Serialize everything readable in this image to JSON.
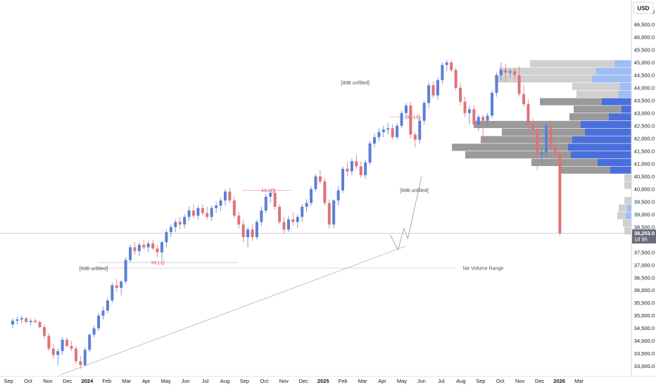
{
  "chart_data": {
    "type": "candlestick",
    "currency_label": "USD",
    "colors": {
      "up": "#5b7fd6",
      "down": "#e07277",
      "price_tag": "#6b6e7a",
      "vp_blue_strong": "#4a6fdc",
      "vp_blue_light": "#9ebdf5",
      "vp_gray_strong": "#9a9a9a",
      "vp_gray_light": "#d0d0d0",
      "annotation_red": "#e5484d",
      "annotation_gray": "#50535e"
    },
    "y_axis": {
      "min": 32600,
      "max": 47300,
      "ticks": [
        "33,000.0",
        "33,500.0",
        "34,000.0",
        "34,500.0",
        "35,000.0",
        "35,500.0",
        "36,000.0",
        "36,500.0",
        "37,000.0",
        "37,500.0",
        "38,000.0",
        "38,500.0",
        "39,000.0",
        "39,500.0",
        "40,000.0",
        "40,500.0",
        "41,000.0",
        "41,500.0",
        "42,000.0",
        "42,500.0",
        "43,000.0",
        "43,500.0",
        "44,000.0",
        "44,500.0",
        "45,000.0",
        "45,500.0",
        "46,000.0",
        "46,500.0",
        "47,000.0"
      ]
    },
    "x_axis": {
      "tick_labels": [
        "Sep",
        "Oct",
        "Nov",
        "Dec",
        "2024",
        "Feb",
        "Mar",
        "Apr",
        "May",
        "Jun",
        "Jul",
        "Aug",
        "Sep",
        "Oct",
        "Nov",
        "Dec",
        "2025",
        "Feb",
        "Mar",
        "Apr",
        "May",
        "Jun",
        "Jul",
        "Aug",
        "Sep",
        "Oct",
        "Nov",
        "Dec",
        "2026",
        "Mar"
      ],
      "bold_labels": [
        "2024",
        "2025",
        "2026"
      ]
    },
    "price_label": {
      "value": 38253,
      "text": "38,253.0",
      "countdown": "1d 9h"
    },
    "candles_start_month": 0.5,
    "candles_per_month": 4.35,
    "candles": [
      [
        34650,
        34900,
        34500,
        34800
      ],
      [
        34800,
        34950,
        34650,
        34850
      ],
      [
        34850,
        35000,
        34700,
        34900
      ],
      [
        34900,
        34950,
        34700,
        34750
      ],
      [
        34750,
        34900,
        34600,
        34800
      ],
      [
        34800,
        34900,
        34700,
        34750
      ],
      [
        34750,
        34800,
        34500,
        34550
      ],
      [
        34550,
        34650,
        34100,
        34200
      ],
      [
        34200,
        34300,
        33600,
        33700
      ],
      [
        33700,
        33900,
        33300,
        33450
      ],
      [
        33450,
        33700,
        33050,
        33600
      ],
      [
        33600,
        34150,
        33450,
        34050
      ],
      [
        34050,
        34150,
        33750,
        33800
      ],
      [
        33800,
        34000,
        33600,
        33700
      ],
      [
        33700,
        33800,
        33100,
        33200
      ],
      [
        33200,
        33400,
        32900,
        33050
      ],
      [
        33050,
        33750,
        33000,
        33650
      ],
      [
        33650,
        34300,
        33550,
        34250
      ],
      [
        34250,
        34600,
        34150,
        34500
      ],
      [
        34500,
        35100,
        34400,
        35000
      ],
      [
        35000,
        35350,
        34850,
        35200
      ],
      [
        35200,
        35700,
        35100,
        35600
      ],
      [
        35600,
        36300,
        35500,
        36200
      ],
      [
        36200,
        36450,
        35950,
        36100
      ],
      [
        36100,
        36400,
        35800,
        36350
      ],
      [
        36350,
        37300,
        36250,
        37200
      ],
      [
        37200,
        37800,
        37100,
        37700
      ],
      [
        37700,
        37900,
        37400,
        37550
      ],
      [
        37550,
        37900,
        37350,
        37800
      ],
      [
        37800,
        38000,
        37600,
        37700
      ],
      [
        37700,
        37950,
        37500,
        37850
      ],
      [
        37850,
        38000,
        37600,
        37650
      ],
      [
        37650,
        37800,
        37300,
        37500
      ],
      [
        37500,
        37950,
        37200,
        37900
      ],
      [
        37900,
        38400,
        37700,
        38300
      ],
      [
        38300,
        38600,
        38100,
        38500
      ],
      [
        38500,
        38800,
        38300,
        38700
      ],
      [
        38700,
        38900,
        38400,
        38600
      ],
      [
        38600,
        39000,
        38450,
        38900
      ],
      [
        38900,
        39300,
        38750,
        39150
      ],
      [
        39150,
        39400,
        38850,
        38950
      ],
      [
        38950,
        39350,
        38800,
        39250
      ],
      [
        39250,
        39400,
        38950,
        39050
      ],
      [
        39050,
        39300,
        38800,
        38900
      ],
      [
        38900,
        39350,
        38750,
        39250
      ],
      [
        39250,
        39500,
        39050,
        39350
      ],
      [
        39350,
        39650,
        39150,
        39550
      ],
      [
        39550,
        40000,
        39350,
        39900
      ],
      [
        39900,
        40050,
        39450,
        39550
      ],
      [
        39550,
        39700,
        38850,
        38950
      ],
      [
        38950,
        39100,
        38450,
        38600
      ],
      [
        38600,
        38800,
        37900,
        38100
      ],
      [
        38100,
        38500,
        37700,
        38400
      ],
      [
        38400,
        38600,
        37950,
        38100
      ],
      [
        38100,
        38800,
        38000,
        38700
      ],
      [
        38700,
        39300,
        38550,
        39150
      ],
      [
        39150,
        39800,
        39050,
        39700
      ],
      [
        39700,
        40000,
        39450,
        39850
      ],
      [
        39850,
        40000,
        39200,
        39300
      ],
      [
        39300,
        39400,
        38600,
        38700
      ],
      [
        38700,
        38900,
        38250,
        38400
      ],
      [
        38400,
        38950,
        38300,
        38800
      ],
      [
        38800,
        39100,
        38550,
        38700
      ],
      [
        38700,
        39000,
        38450,
        38900
      ],
      [
        38900,
        39400,
        38700,
        39300
      ],
      [
        39300,
        39600,
        39100,
        39450
      ],
      [
        39450,
        40100,
        39350,
        40000
      ],
      [
        40000,
        40600,
        39900,
        40500
      ],
      [
        40500,
        40750,
        40200,
        40300
      ],
      [
        40300,
        40450,
        39350,
        39450
      ],
      [
        39450,
        39600,
        38450,
        38600
      ],
      [
        38600,
        39600,
        38450,
        39550
      ],
      [
        39550,
        40100,
        39350,
        39950
      ],
      [
        39950,
        40900,
        39850,
        40800
      ],
      [
        40800,
        41050,
        40500,
        40700
      ],
      [
        40700,
        41200,
        40550,
        41100
      ],
      [
        41100,
        41350,
        40800,
        40900
      ],
      [
        40900,
        41100,
        40450,
        40550
      ],
      [
        40550,
        41150,
        40400,
        41050
      ],
      [
        41050,
        41900,
        40950,
        41800
      ],
      [
        41800,
        42200,
        41650,
        42050
      ],
      [
        42050,
        42400,
        41900,
        42250
      ],
      [
        42250,
        42500,
        42050,
        42350
      ],
      [
        42350,
        42600,
        42150,
        42400
      ],
      [
        42400,
        42550,
        41950,
        42050
      ],
      [
        42050,
        42600,
        41950,
        42500
      ],
      [
        42500,
        43100,
        42400,
        43000
      ],
      [
        43000,
        43400,
        42750,
        43300
      ],
      [
        43300,
        43450,
        42000,
        42150
      ],
      [
        42150,
        42250,
        41650,
        41950
      ],
      [
        41950,
        42800,
        41800,
        42700
      ],
      [
        42700,
        43500,
        42550,
        43400
      ],
      [
        43400,
        44200,
        43200,
        44100
      ],
      [
        44100,
        44250,
        43600,
        43700
      ],
      [
        43700,
        44400,
        43550,
        44300
      ],
      [
        44300,
        45000,
        44150,
        44900
      ],
      [
        44900,
        45100,
        44650,
        45000
      ],
      [
        45000,
        45100,
        44600,
        44700
      ],
      [
        44700,
        44800,
        43900,
        44000
      ],
      [
        44000,
        44200,
        43300,
        43450
      ],
      [
        43450,
        43650,
        42850,
        43000
      ],
      [
        43000,
        43300,
        42550,
        43150
      ],
      [
        43150,
        43300,
        42450,
        42550
      ],
      [
        42550,
        42950,
        42300,
        42850
      ],
      [
        42850,
        42950,
        41900,
        42700
      ],
      [
        42700,
        43000,
        42500,
        42900
      ],
      [
        42900,
        43900,
        42800,
        43800
      ],
      [
        43800,
        44600,
        43650,
        44500
      ],
      [
        44500,
        45000,
        44300,
        44700
      ],
      [
        44700,
        44950,
        44250,
        44600
      ],
      [
        44600,
        44750,
        44400,
        44650
      ],
      [
        44650,
        44800,
        44350,
        44500
      ],
      [
        44500,
        44850,
        43650,
        43750
      ],
      [
        43750,
        44100,
        43250,
        43350
      ],
      [
        43350,
        43550,
        42350,
        42550
      ],
      [
        42550,
        42800,
        41750,
        42350
      ],
      [
        42350,
        42600,
        40750,
        41350
      ],
      [
        41350,
        41650,
        41050,
        41450
      ],
      [
        41450,
        42600,
        41250,
        42500
      ],
      [
        42500,
        42700,
        41500,
        41650
      ],
      [
        41650,
        41900,
        41200,
        41400
      ],
      [
        41400,
        41550,
        38150,
        38253
      ]
    ],
    "volume_profile": [
      {
        "price": 44950,
        "gray": 120,
        "blue": 24,
        "blue_tone": "light"
      },
      {
        "price": 44650,
        "gray": 138,
        "blue": 50,
        "blue_tone": "light"
      },
      {
        "price": 44350,
        "gray": 138,
        "blue": 56,
        "blue_tone": "light"
      },
      {
        "price": 44050,
        "gray": 68,
        "blue": 16,
        "blue_tone": "light"
      },
      {
        "price": 43750,
        "gray": 60,
        "blue": 18,
        "blue_tone": "light"
      },
      {
        "price": 43450,
        "gray": 88,
        "blue": 42,
        "blue_tone": "strong"
      },
      {
        "price": 43150,
        "gray": 68,
        "blue": 14,
        "blue_tone": "strong"
      },
      {
        "price": 42850,
        "gray": 56,
        "blue": 32,
        "blue_tone": "strong"
      },
      {
        "price": 42550,
        "gray": 152,
        "blue": 72,
        "blue_tone": "strong"
      },
      {
        "price": 42250,
        "gray": 118,
        "blue": 66,
        "blue_tone": "strong"
      },
      {
        "price": 41950,
        "gray": 130,
        "blue": 84,
        "blue_tone": "strong"
      },
      {
        "price": 41650,
        "gray": 165,
        "blue": 90,
        "blue_tone": "strong"
      },
      {
        "price": 41350,
        "gray": 150,
        "blue": 86,
        "blue_tone": "strong"
      },
      {
        "price": 41050,
        "gray": 94,
        "blue": 48,
        "blue_tone": "strong"
      },
      {
        "price": 40750,
        "gray": 70,
        "blue": 30,
        "blue_tone": "strong"
      },
      {
        "price": 40450,
        "gray": 10,
        "blue": 0,
        "blue_tone": "light"
      },
      {
        "price": 40150,
        "gray": 10,
        "blue": 0,
        "blue_tone": "light"
      },
      {
        "price": 39550,
        "gray": 10,
        "blue": 0,
        "blue_tone": "light"
      },
      {
        "price": 39250,
        "gray": 12,
        "blue": 6,
        "blue_tone": "light"
      },
      {
        "price": 38950,
        "gray": 12,
        "blue": 8,
        "blue_tone": "light"
      },
      {
        "price": 38650,
        "gray": 12,
        "blue": 0,
        "blue_tone": "light"
      },
      {
        "price": 38350,
        "gray": 10,
        "blue": 0,
        "blue_tone": "light"
      }
    ],
    "annotations": [
      {
        "type": "hline",
        "color": "red",
        "x1_month": 19.4,
        "x2_month": 21.2,
        "y": 42850,
        "label": "int.LQ",
        "label_month": 20.6
      },
      {
        "type": "hline",
        "color": "red",
        "x1_month": 11.9,
        "x2_month": 14.4,
        "y": 39950,
        "label": "int.LQ",
        "label_month": 13.2
      },
      {
        "type": "hline",
        "color": "gray",
        "x1_month": 4.6,
        "x2_month": 11.7,
        "y": 37100,
        "label": "int.LQ",
        "label_month": 7.6,
        "label_color": "red"
      },
      {
        "type": "hline",
        "color": "gray",
        "x1_month": 3.6,
        "x2_month": 22.7,
        "y": 36880,
        "label": "fair Volume Range",
        "label_month": 23.1,
        "label_color": "gray",
        "label_side": "right"
      },
      {
        "type": "text",
        "month": 16.9,
        "y": 44200,
        "label": "[IMB unfilled]"
      },
      {
        "type": "text",
        "month": 19.9,
        "y": 39950,
        "label": "[IMB unfilled]"
      },
      {
        "type": "text",
        "month": 3.6,
        "y": 36860,
        "label": "[IMB unfilled]"
      },
      {
        "type": "trendline",
        "x1_month": 2.6,
        "y1": 32650,
        "x2_month": 20.2,
        "y2": 37750
      },
      {
        "type": "path",
        "points": [
          [
            19.4,
            38200
          ],
          [
            19.8,
            37600
          ],
          [
            20.1,
            38450
          ],
          [
            20.3,
            38050
          ],
          [
            21.0,
            40500
          ]
        ]
      }
    ]
  }
}
